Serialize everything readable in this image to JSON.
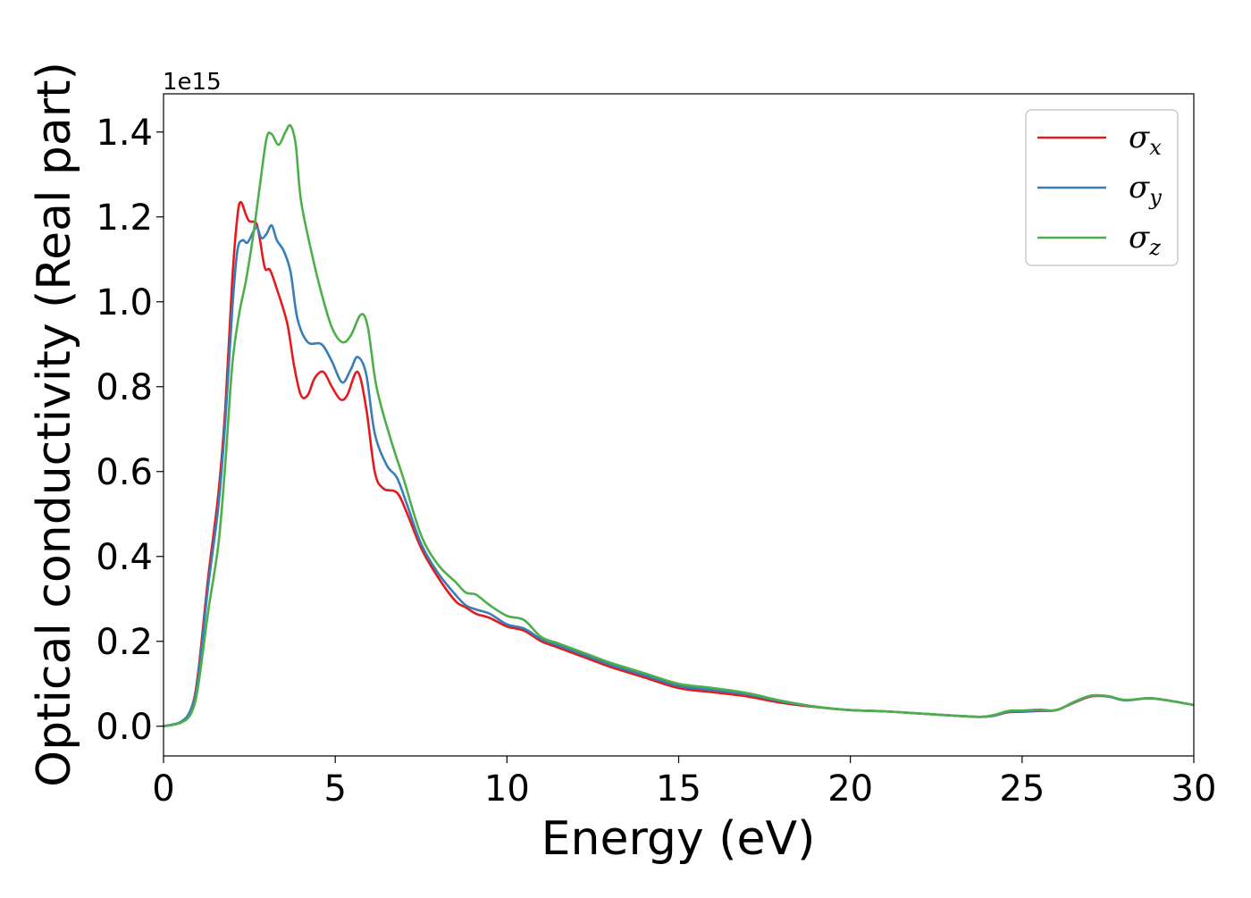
{
  "chart_data": {
    "type": "line",
    "xlabel": "Energy (eV)",
    "ylabel": "Optical conductivity (Real part)",
    "y_offset_label": "1e15",
    "xlim": [
      0,
      30
    ],
    "ylim": [
      -0.07,
      1.49
    ],
    "x_ticks": [
      0,
      5,
      10,
      15,
      20,
      25,
      30
    ],
    "y_ticks": [
      0.0,
      0.2,
      0.4,
      0.6,
      0.8,
      1.0,
      1.2,
      1.4
    ],
    "x_tick_labels": [
      "0",
      "5",
      "10",
      "15",
      "20",
      "25",
      "30"
    ],
    "y_tick_labels": [
      "0.0",
      "0.2",
      "0.4",
      "0.6",
      "0.8",
      "1.0",
      "1.2",
      "1.4"
    ],
    "grid": false,
    "legend_position": "top-right",
    "series": [
      {
        "name": "σx",
        "symbol": "σ",
        "subscript": "x",
        "color": "#e41a1c",
        "points": [
          [
            0,
            0.0
          ],
          [
            0.5,
            0.01
          ],
          [
            0.8,
            0.04
          ],
          [
            1.0,
            0.12
          ],
          [
            1.3,
            0.35
          ],
          [
            1.6,
            0.55
          ],
          [
            1.8,
            0.75
          ],
          [
            2.0,
            1.05
          ],
          [
            2.15,
            1.2
          ],
          [
            2.25,
            1.235
          ],
          [
            2.4,
            1.205
          ],
          [
            2.5,
            1.19
          ],
          [
            2.7,
            1.185
          ],
          [
            2.8,
            1.15
          ],
          [
            2.95,
            1.08
          ],
          [
            3.1,
            1.075
          ],
          [
            3.3,
            1.03
          ],
          [
            3.6,
            0.95
          ],
          [
            3.8,
            0.85
          ],
          [
            4.0,
            0.78
          ],
          [
            4.2,
            0.78
          ],
          [
            4.4,
            0.82
          ],
          [
            4.65,
            0.835
          ],
          [
            4.9,
            0.8
          ],
          [
            5.15,
            0.77
          ],
          [
            5.35,
            0.78
          ],
          [
            5.65,
            0.835
          ],
          [
            5.9,
            0.75
          ],
          [
            6.15,
            0.6
          ],
          [
            6.4,
            0.56
          ],
          [
            6.8,
            0.55
          ],
          [
            7.1,
            0.5
          ],
          [
            7.5,
            0.42
          ],
          [
            8.0,
            0.35
          ],
          [
            8.5,
            0.295
          ],
          [
            8.8,
            0.28
          ],
          [
            9.1,
            0.265
          ],
          [
            9.5,
            0.255
          ],
          [
            10.0,
            0.235
          ],
          [
            10.5,
            0.225
          ],
          [
            11.0,
            0.2
          ],
          [
            11.5,
            0.185
          ],
          [
            12.0,
            0.17
          ],
          [
            12.5,
            0.155
          ],
          [
            13.0,
            0.14
          ],
          [
            14.0,
            0.115
          ],
          [
            15.0,
            0.09
          ],
          [
            16.0,
            0.08
          ],
          [
            17.0,
            0.07
          ],
          [
            18.0,
            0.055
          ],
          [
            19.0,
            0.045
          ],
          [
            20.0,
            0.038
          ],
          [
            21.0,
            0.035
          ],
          [
            22.0,
            0.03
          ],
          [
            23.0,
            0.025
          ],
          [
            23.8,
            0.022
          ],
          [
            24.2,
            0.025
          ],
          [
            24.6,
            0.033
          ],
          [
            25.0,
            0.034
          ],
          [
            25.5,
            0.036
          ],
          [
            26.0,
            0.038
          ],
          [
            26.5,
            0.055
          ],
          [
            27.0,
            0.07
          ],
          [
            27.5,
            0.07
          ],
          [
            28.0,
            0.061
          ],
          [
            28.7,
            0.066
          ],
          [
            29.3,
            0.06
          ],
          [
            30.0,
            0.05
          ]
        ]
      },
      {
        "name": "σy",
        "symbol": "σ",
        "subscript": "y",
        "color": "#377eb8",
        "points": [
          [
            0,
            0.0
          ],
          [
            0.5,
            0.01
          ],
          [
            0.8,
            0.04
          ],
          [
            1.0,
            0.11
          ],
          [
            1.3,
            0.33
          ],
          [
            1.6,
            0.52
          ],
          [
            1.8,
            0.72
          ],
          [
            2.0,
            0.98
          ],
          [
            2.15,
            1.12
          ],
          [
            2.3,
            1.145
          ],
          [
            2.45,
            1.14
          ],
          [
            2.7,
            1.175
          ],
          [
            2.85,
            1.15
          ],
          [
            3.0,
            1.16
          ],
          [
            3.15,
            1.18
          ],
          [
            3.3,
            1.145
          ],
          [
            3.5,
            1.12
          ],
          [
            3.7,
            1.07
          ],
          [
            3.9,
            0.96
          ],
          [
            4.2,
            0.905
          ],
          [
            4.6,
            0.9
          ],
          [
            4.9,
            0.86
          ],
          [
            5.2,
            0.81
          ],
          [
            5.45,
            0.84
          ],
          [
            5.65,
            0.87
          ],
          [
            5.9,
            0.83
          ],
          [
            6.15,
            0.69
          ],
          [
            6.5,
            0.615
          ],
          [
            6.8,
            0.585
          ],
          [
            7.1,
            0.52
          ],
          [
            7.5,
            0.43
          ],
          [
            8.0,
            0.36
          ],
          [
            8.5,
            0.31
          ],
          [
            8.8,
            0.285
          ],
          [
            9.1,
            0.275
          ],
          [
            9.5,
            0.265
          ],
          [
            10.0,
            0.24
          ],
          [
            10.5,
            0.23
          ],
          [
            11.0,
            0.205
          ],
          [
            11.5,
            0.19
          ],
          [
            12.0,
            0.175
          ],
          [
            12.5,
            0.16
          ],
          [
            13.0,
            0.145
          ],
          [
            14.0,
            0.12
          ],
          [
            15.0,
            0.095
          ],
          [
            16.0,
            0.085
          ],
          [
            17.0,
            0.075
          ],
          [
            18.0,
            0.058
          ],
          [
            19.0,
            0.046
          ],
          [
            20.0,
            0.038
          ],
          [
            21.0,
            0.035
          ],
          [
            22.0,
            0.03
          ],
          [
            23.0,
            0.025
          ],
          [
            23.8,
            0.022
          ],
          [
            24.2,
            0.025
          ],
          [
            24.6,
            0.034
          ],
          [
            25.0,
            0.035
          ],
          [
            25.5,
            0.037
          ],
          [
            26.0,
            0.038
          ],
          [
            26.5,
            0.056
          ],
          [
            27.0,
            0.071
          ],
          [
            27.5,
            0.07
          ],
          [
            28.0,
            0.061
          ],
          [
            28.7,
            0.066
          ],
          [
            29.3,
            0.06
          ],
          [
            30.0,
            0.05
          ]
        ]
      },
      {
        "name": "σz",
        "symbol": "σ",
        "subscript": "z",
        "color": "#4daf4a",
        "points": [
          [
            0,
            0.0
          ],
          [
            0.5,
            0.008
          ],
          [
            0.8,
            0.03
          ],
          [
            1.0,
            0.09
          ],
          [
            1.3,
            0.27
          ],
          [
            1.6,
            0.43
          ],
          [
            1.8,
            0.62
          ],
          [
            2.0,
            0.85
          ],
          [
            2.2,
            0.97
          ],
          [
            2.4,
            1.05
          ],
          [
            2.6,
            1.15
          ],
          [
            2.8,
            1.27
          ],
          [
            3.0,
            1.385
          ],
          [
            3.15,
            1.395
          ],
          [
            3.35,
            1.37
          ],
          [
            3.55,
            1.4
          ],
          [
            3.7,
            1.415
          ],
          [
            3.85,
            1.37
          ],
          [
            4.0,
            1.24
          ],
          [
            4.3,
            1.12
          ],
          [
            4.6,
            1.02
          ],
          [
            4.9,
            0.94
          ],
          [
            5.2,
            0.905
          ],
          [
            5.45,
            0.92
          ],
          [
            5.75,
            0.97
          ],
          [
            5.95,
            0.94
          ],
          [
            6.2,
            0.8
          ],
          [
            6.6,
            0.68
          ],
          [
            7.0,
            0.58
          ],
          [
            7.5,
            0.45
          ],
          [
            8.0,
            0.38
          ],
          [
            8.5,
            0.34
          ],
          [
            8.8,
            0.315
          ],
          [
            9.1,
            0.31
          ],
          [
            9.5,
            0.285
          ],
          [
            10.0,
            0.26
          ],
          [
            10.5,
            0.25
          ],
          [
            11.0,
            0.21
          ],
          [
            11.5,
            0.195
          ],
          [
            12.0,
            0.18
          ],
          [
            12.5,
            0.165
          ],
          [
            13.0,
            0.15
          ],
          [
            14.0,
            0.125
          ],
          [
            15.0,
            0.1
          ],
          [
            16.0,
            0.09
          ],
          [
            17.0,
            0.078
          ],
          [
            18.0,
            0.06
          ],
          [
            19.0,
            0.046
          ],
          [
            20.0,
            0.038
          ],
          [
            21.0,
            0.035
          ],
          [
            22.0,
            0.03
          ],
          [
            23.0,
            0.025
          ],
          [
            23.8,
            0.022
          ],
          [
            24.2,
            0.027
          ],
          [
            24.6,
            0.036
          ],
          [
            25.0,
            0.037
          ],
          [
            25.5,
            0.039
          ],
          [
            26.0,
            0.038
          ],
          [
            26.5,
            0.057
          ],
          [
            27.0,
            0.072
          ],
          [
            27.5,
            0.071
          ],
          [
            28.0,
            0.062
          ],
          [
            28.7,
            0.066
          ],
          [
            29.3,
            0.06
          ],
          [
            30.0,
            0.05
          ]
        ]
      }
    ]
  }
}
